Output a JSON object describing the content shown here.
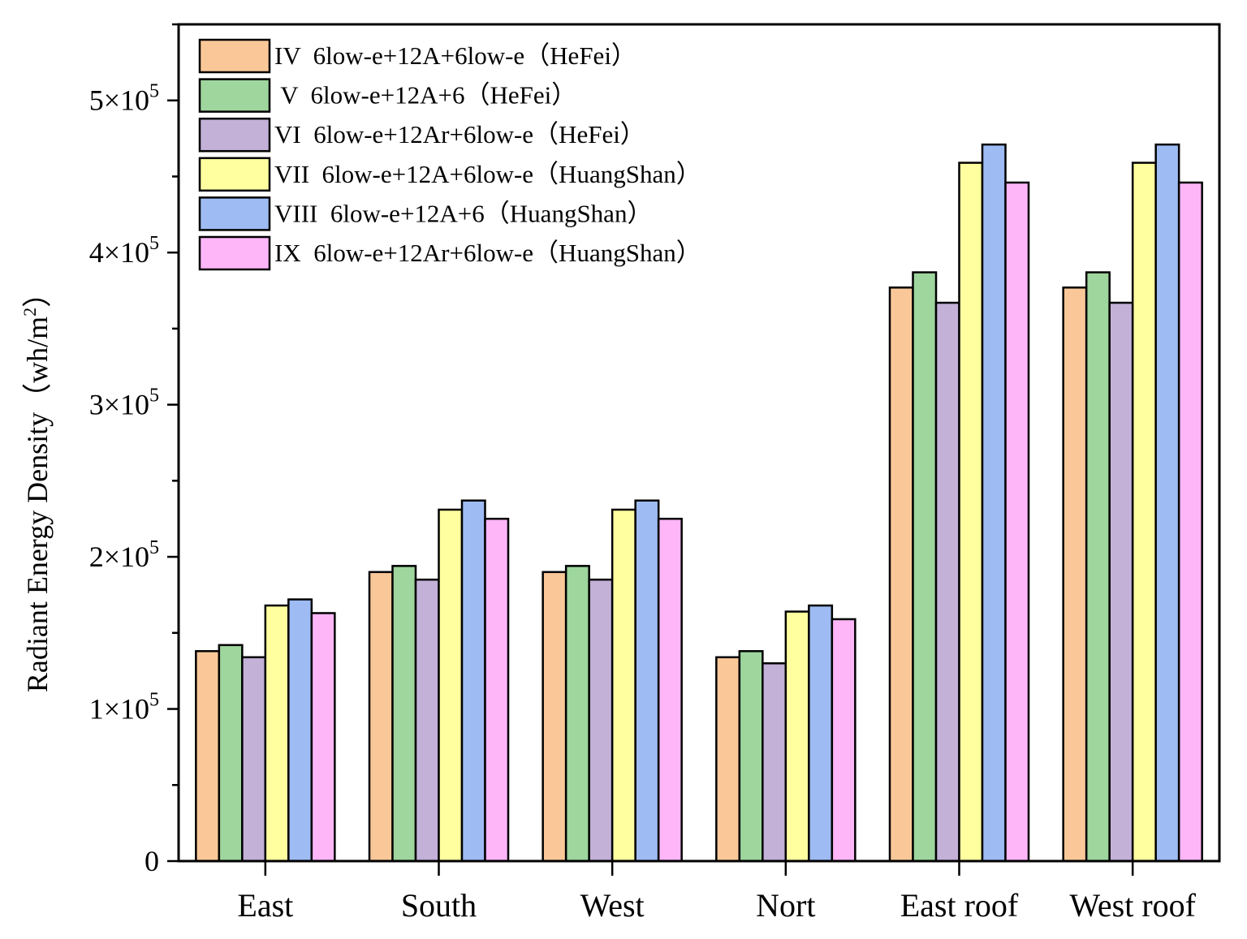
{
  "chart_data": {
    "type": "bar",
    "title": "",
    "xlabel": "",
    "ylabel": "Radiant Energy Density（wh/m",
    "ylabel_sup": "2",
    "ylabel_end": "）",
    "ylim": [
      0,
      550000
    ],
    "yticks": [
      {
        "value": 0,
        "base": "0",
        "exp": ""
      },
      {
        "value": 100000,
        "base": "1×10",
        "exp": "5"
      },
      {
        "value": 200000,
        "base": "2×10",
        "exp": "5"
      },
      {
        "value": 300000,
        "base": "3×10",
        "exp": "5"
      },
      {
        "value": 400000,
        "base": "4×10",
        "exp": "5"
      },
      {
        "value": 500000,
        "base": "5×10",
        "exp": "5"
      }
    ],
    "categories": [
      "East",
      "South",
      "West",
      "Nort",
      "East roof",
      "West roof"
    ],
    "legend_position": "top-left",
    "series": [
      {
        "name": "IV  6low-e+12A+6low-e（HeFei）",
        "color": "#FAC898",
        "values": [
          138000,
          190000,
          190000,
          134000,
          377000,
          377000
        ]
      },
      {
        "name": " V  6low-e+12A+6（HeFei）",
        "color": "#9ED69E",
        "values": [
          142000,
          194000,
          194000,
          138000,
          387000,
          387000
        ]
      },
      {
        "name": "VI  6low-e+12Ar+6low-e（HeFei）",
        "color": "#C3B1D8",
        "values": [
          134000,
          185000,
          185000,
          130000,
          367000,
          367000
        ]
      },
      {
        "name": "VII  6low-e+12A+6low-e（HuangShan）",
        "color": "#FFFFA0",
        "values": [
          168000,
          231000,
          231000,
          164000,
          459000,
          459000
        ]
      },
      {
        "name": "VIII  6low-e+12A+6（HuangShan）",
        "color": "#9EBBF3",
        "values": [
          172000,
          237000,
          237000,
          168000,
          471000,
          471000
        ]
      },
      {
        "name": "IX  6low-e+12Ar+6low-e（HuangShan）",
        "color": "#FEB6F8",
        "values": [
          163000,
          225000,
          225000,
          159000,
          446000,
          446000
        ]
      }
    ]
  }
}
